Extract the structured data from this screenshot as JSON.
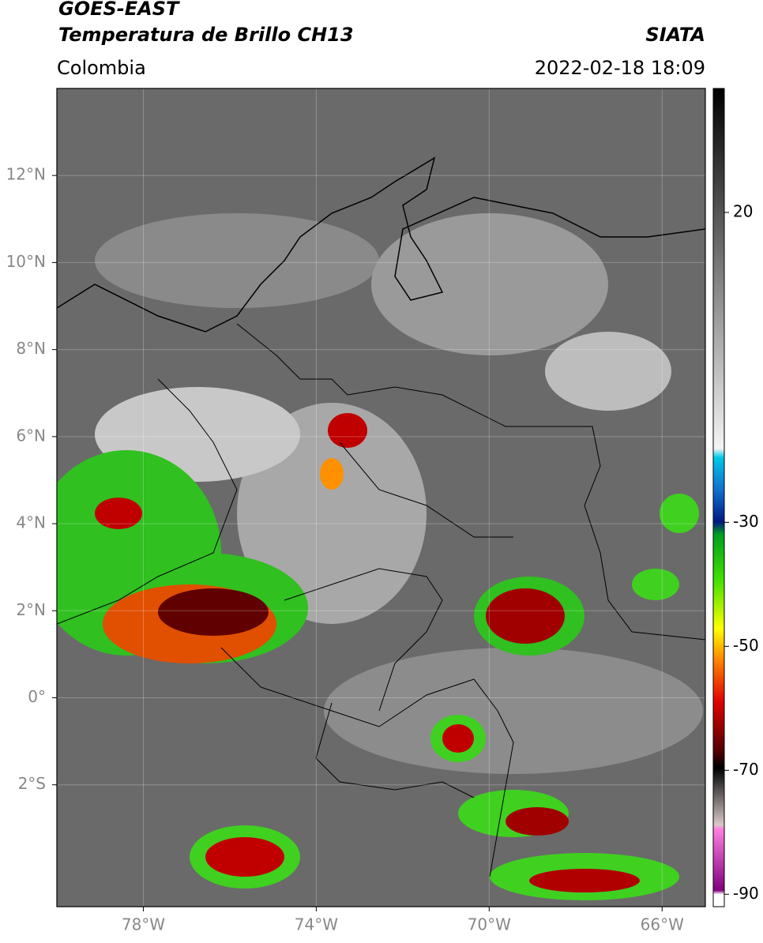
{
  "header": {
    "title": "GOES-EAST",
    "subtitle": "Temperatura de Brillo CH13",
    "source": "SIATA",
    "region": "Colombia",
    "datetime": "2022-02-18 18:09"
  },
  "map": {
    "type": "map",
    "xlim": [
      -80,
      -65
    ],
    "ylim": [
      -4.8,
      14
    ],
    "xticks": [
      {
        "value": -78,
        "label": "78°W"
      },
      {
        "value": -74,
        "label": "74°W"
      },
      {
        "value": -70,
        "label": "70°W"
      },
      {
        "value": -66,
        "label": "66°W"
      }
    ],
    "yticks": [
      {
        "value": 12,
        "label": "12°N"
      },
      {
        "value": 10,
        "label": "10°N"
      },
      {
        "value": 8,
        "label": "8°N"
      },
      {
        "value": 6,
        "label": "6°N"
      },
      {
        "value": 4,
        "label": "4°N"
      },
      {
        "value": 2,
        "label": "2°N"
      },
      {
        "value": 0,
        "label": "0°"
      },
      {
        "value": -2,
        "label": "2°S"
      }
    ],
    "grid": true
  },
  "colorbar": {
    "clim": [
      -92,
      40
    ],
    "ticks": [
      20,
      -30,
      -50,
      -70,
      -90
    ]
  }
}
